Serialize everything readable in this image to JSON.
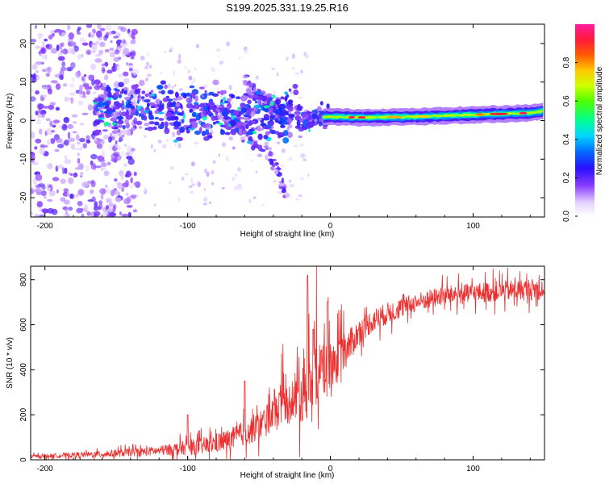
{
  "title": "S199.2025.331.19.25.R16",
  "colors": {
    "signal": "#ec3030",
    "scale": [
      "#ffffff",
      "#e6d3ff",
      "#b57cff",
      "#6a00ff",
      "#1a1aff",
      "#00c8ff",
      "#00ff7a",
      "#b4ff00",
      "#ffe000",
      "#ff7a00",
      "#ff1a3a",
      "#ff1aa0"
    ]
  },
  "chart_data": [
    {
      "type": "heatmap",
      "name": "spectrogram",
      "xlabel": "Height of straight line (km)",
      "ylabel": "Frequency (Hz)",
      "xlim": [
        -210,
        150
      ],
      "ylim": [
        -25,
        25
      ],
      "xticks": [
        -200,
        -100,
        0,
        100
      ],
      "yticks": [
        -20,
        -10,
        0,
        10,
        20
      ],
      "colorbar": {
        "label": "Normalized spectral amplitude",
        "range": [
          0,
          1
        ],
        "ticks": [
          0.0,
          0.2,
          0.4,
          0.6,
          0.8
        ]
      },
      "ridge": {
        "description": "dominant spectral line",
        "points": [
          [
            -160,
            2.5
          ],
          [
            -130,
            4
          ],
          [
            -100,
            2
          ],
          [
            -60,
            1
          ],
          [
            -20,
            1
          ],
          [
            0,
            1
          ],
          [
            20,
            0.8
          ],
          [
            60,
            1
          ],
          [
            100,
            1.5
          ],
          [
            140,
            2
          ],
          [
            150,
            2.5
          ]
        ]
      },
      "branches": [
        {
          "points": [
            [
              -80,
              3
            ],
            [
              -60,
              -3
            ],
            [
              -40,
              -10
            ],
            [
              -30,
              -20
            ]
          ]
        },
        {
          "points": [
            [
              -60,
              10
            ],
            [
              -45,
              5
            ],
            [
              -35,
              2
            ]
          ]
        }
      ]
    },
    {
      "type": "line",
      "name": "snr",
      "xlabel": "Height of straight line (km)",
      "ylabel": "SNR (10 * v/v)",
      "xlim": [
        -210,
        150
      ],
      "ylim": [
        0,
        860
      ],
      "xticks": [
        -200,
        -100,
        0,
        100
      ],
      "yticks": [
        0,
        200,
        400,
        600,
        800
      ],
      "trend": [
        [
          -210,
          15
        ],
        [
          -160,
          25
        ],
        [
          -120,
          40
        ],
        [
          -90,
          60
        ],
        [
          -70,
          90
        ],
        [
          -50,
          150
        ],
        [
          -40,
          200
        ],
        [
          -30,
          250
        ],
        [
          -20,
          300
        ],
        [
          -10,
          380
        ],
        [
          0,
          420
        ],
        [
          5,
          440
        ],
        [
          10,
          480
        ],
        [
          15,
          520
        ],
        [
          20,
          570
        ],
        [
          30,
          620
        ],
        [
          40,
          650
        ],
        [
          60,
          700
        ],
        [
          80,
          730
        ],
        [
          100,
          740
        ],
        [
          120,
          750
        ],
        [
          150,
          760
        ]
      ],
      "noise": [
        [
          -210,
          10
        ],
        [
          -120,
          30
        ],
        [
          -60,
          80
        ],
        [
          -30,
          130
        ],
        [
          -15,
          220
        ],
        [
          0,
          160
        ],
        [
          20,
          80
        ],
        [
          60,
          60
        ],
        [
          150,
          70
        ]
      ],
      "spikes": [
        [
          -16,
          820
        ],
        [
          -12,
          580
        ],
        [
          -2,
          700
        ],
        [
          -60,
          350
        ],
        [
          -100,
          200
        ]
      ]
    }
  ]
}
